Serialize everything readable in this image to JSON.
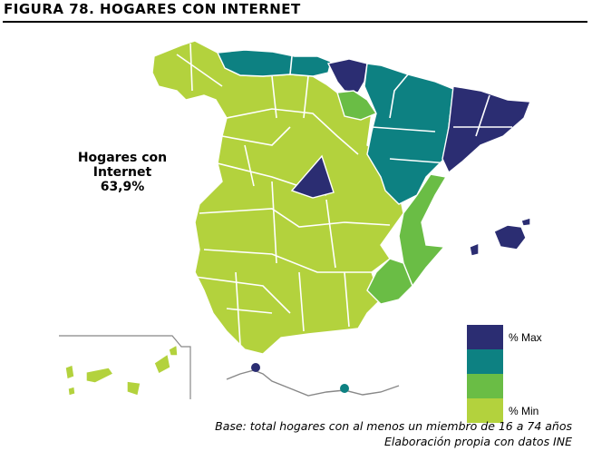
{
  "title": "FIGURA 78. HOGARES CON INTERNET",
  "stat": {
    "line1": "Hogares con",
    "line2": "Internet",
    "value": "63,9%"
  },
  "colors": {
    "max": "#2b2d72",
    "high": "#0d8182",
    "mid": "#6abd45",
    "min": "#b3d23d",
    "border": "#ffffff",
    "coast": "#888888"
  },
  "legend": {
    "items": [
      {
        "label": "% Max",
        "color": "#2b2d72"
      },
      {
        "label": "",
        "color": "#0d8182"
      },
      {
        "label": "",
        "color": "#6abd45"
      },
      {
        "label": "% Min",
        "color": "#b3d23d"
      }
    ]
  },
  "footer": {
    "line1": "Base: total hogares con al menos un miembro de 16 a 74 años",
    "line2": "Elaboración propia con datos INE"
  }
}
